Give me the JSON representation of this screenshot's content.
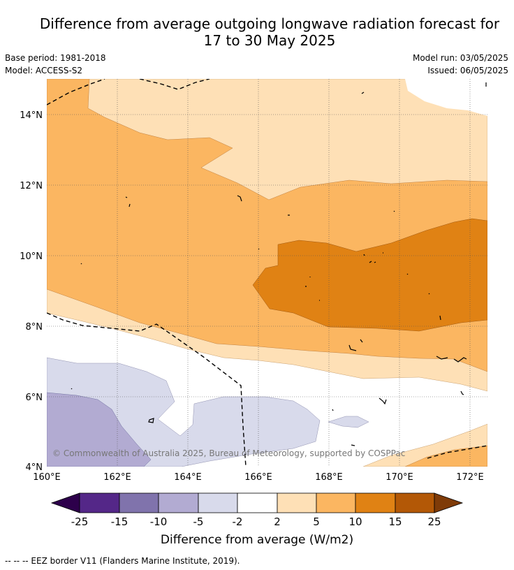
{
  "title": {
    "line1": "Difference from average outgoing longwave radiation forecast for",
    "line2": "17 to 30 May 2025"
  },
  "meta": {
    "base_period": "Base period: 1981-2018",
    "model": "Model: ACCESS-S2",
    "model_run": "Model run: 03/05/2025",
    "issued": "Issued: 06/05/2025"
  },
  "map": {
    "lat_labels": [
      "14°N",
      "12°N",
      "10°N",
      "8°N",
      "6°N",
      "4°N"
    ],
    "lon_labels": [
      "160°E",
      "162°E",
      "164°E",
      "166°E",
      "168°E",
      "170°E",
      "172°E"
    ],
    "copyright": "© Commonwealth of Australia 2025, Bureau of Meteorology, supported by COSPPac"
  },
  "colorbar": {
    "tick_labels": [
      "-25",
      "-15",
      "-10",
      "-5",
      "-2",
      "2",
      "5",
      "10",
      "15",
      "25"
    ],
    "label": "Difference from average (W/m2)",
    "colors": {
      "below_min": "#2d004b",
      "b1": "#542788",
      "b2": "#8073ac",
      "b3": "#b2abd2",
      "b4": "#d8daeb",
      "b5": "#ffffff",
      "b6": "#fee0b6",
      "b7": "#fbb661",
      "b8": "#e08214",
      "b9": "#b35806",
      "above_max": "#7f3b08"
    }
  },
  "footer": "--  --  -- EEZ border V11 (Flanders Marine Institute, 2019)."
}
